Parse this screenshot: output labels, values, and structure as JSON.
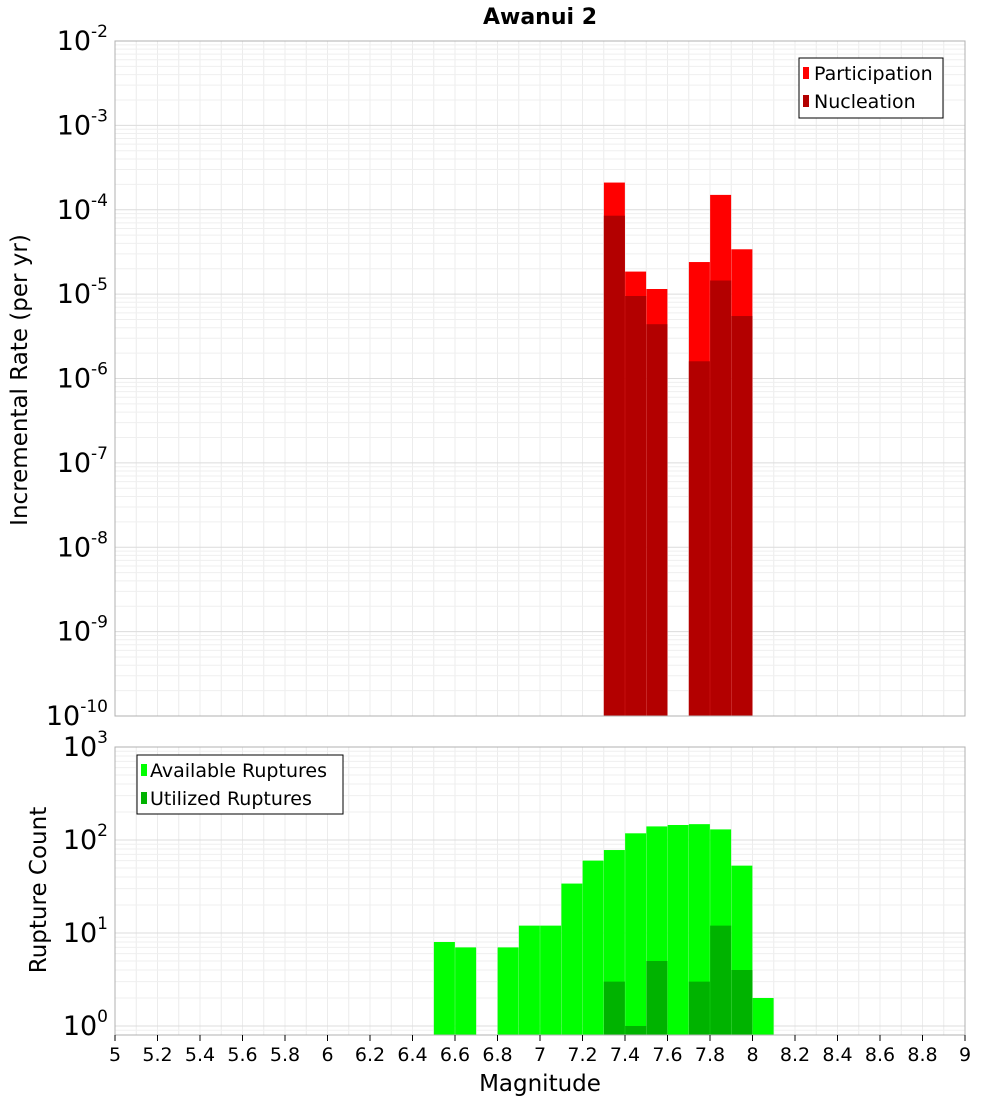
{
  "chart_data": [
    {
      "type": "bar",
      "title": "Awanui 2",
      "ylabel": "Incremental Rate (per yr)",
      "xlabel": "",
      "y_scale": "log",
      "xlim": [
        5,
        9
      ],
      "ylim": [
        1e-10,
        0.01
      ],
      "y_ticks": [
        {
          "mant": "10",
          "exp": "-10"
        },
        {
          "mant": "10",
          "exp": "-9"
        },
        {
          "mant": "10",
          "exp": "-8"
        },
        {
          "mant": "10",
          "exp": "-7"
        },
        {
          "mant": "10",
          "exp": "-6"
        },
        {
          "mant": "10",
          "exp": "-5"
        },
        {
          "mant": "10",
          "exp": "-4"
        },
        {
          "mant": "10",
          "exp": "-3"
        },
        {
          "mant": "10",
          "exp": "-2"
        }
      ],
      "grid": true,
      "legend_position": "top-right",
      "x": [
        7.35,
        7.45,
        7.55,
        7.75,
        7.85,
        7.95
      ],
      "series": [
        {
          "name": "Participation",
          "color": "#ff0000",
          "values": [
            0.00021,
            1.85e-05,
            1.15e-05,
            2.4e-05,
            0.00015,
            3.4e-05
          ]
        },
        {
          "name": "Nucleation",
          "color": "#b30000",
          "values": [
            8.5e-05,
            9.5e-06,
            4.4e-06,
            1.6e-06,
            1.45e-05,
            5.5e-06
          ]
        }
      ]
    },
    {
      "type": "bar",
      "title": "",
      "ylabel": "Rupture Count",
      "xlabel": "Magnitude",
      "y_scale": "log",
      "xlim": [
        5,
        9
      ],
      "ylim": [
        0.8,
        1000
      ],
      "x_ticks": [
        "5",
        "5.2",
        "5.4",
        "5.6",
        "5.8",
        "6",
        "6.2",
        "6.4",
        "6.6",
        "6.8",
        "7",
        "7.2",
        "7.4",
        "7.6",
        "7.8",
        "8",
        "8.2",
        "8.4",
        "8.6",
        "8.8",
        "9"
      ],
      "y_ticks": [
        {
          "mant": "10",
          "exp": "0"
        },
        {
          "mant": "10",
          "exp": "1"
        },
        {
          "mant": "10",
          "exp": "2"
        },
        {
          "mant": "10",
          "exp": "3"
        }
      ],
      "grid": true,
      "legend_position": "top-left",
      "series": [
        {
          "name": "Available Ruptures",
          "color": "#00ff00",
          "x": [
            6.55,
            6.65,
            6.85,
            6.95,
            7.05,
            7.15,
            7.25,
            7.35,
            7.45,
            7.55,
            7.65,
            7.75,
            7.85,
            7.95,
            8.05
          ],
          "values": [
            8,
            7,
            7,
            12,
            12,
            34,
            60,
            78,
            118,
            140,
            145,
            148,
            130,
            53,
            2
          ]
        },
        {
          "name": "Utilized Ruptures",
          "color": "#00b300",
          "x": [
            7.35,
            7.45,
            7.55,
            7.75,
            7.85,
            7.95
          ],
          "values": [
            3,
            1,
            5,
            3,
            12,
            4
          ]
        }
      ]
    }
  ]
}
